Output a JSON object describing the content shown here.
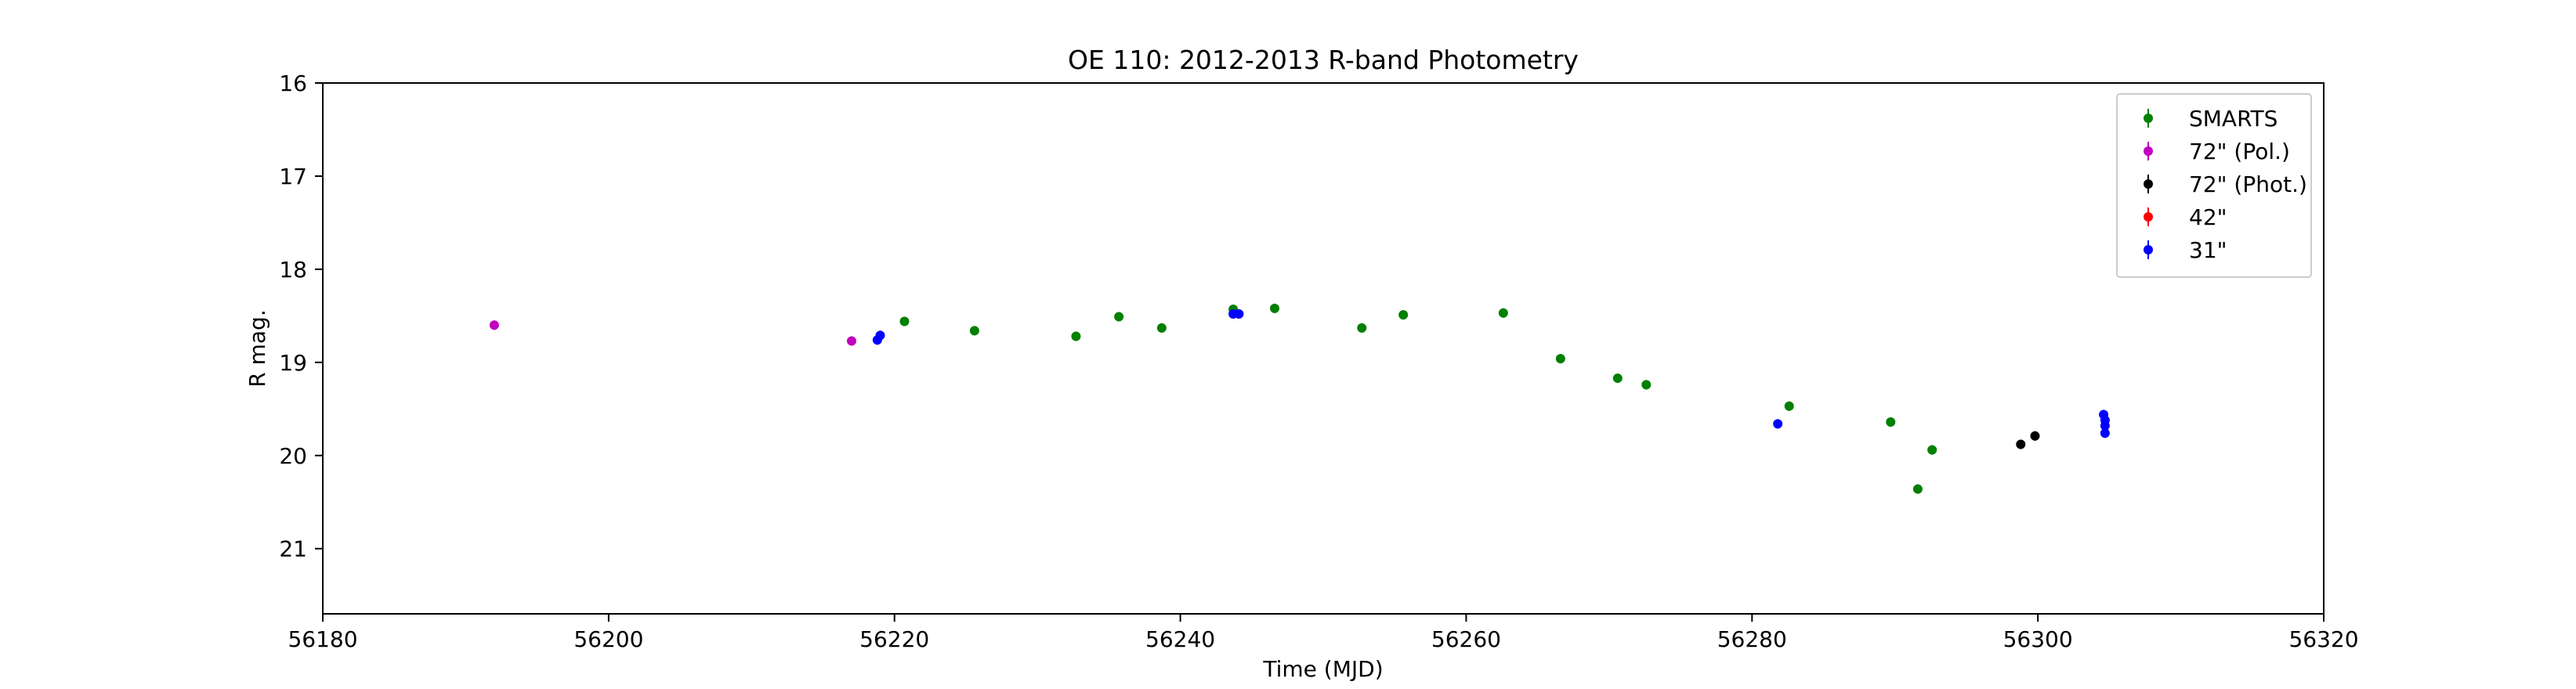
{
  "chart_data": {
    "type": "scatter",
    "title": "OE 110: 2012-2013 R-band Photometry",
    "xlabel": "Time (MJD)",
    "ylabel": "R mag.",
    "xlim": [
      56180,
      56320
    ],
    "ylim": [
      21.7,
      16
    ],
    "y_inverted": true,
    "xticks": [
      56180,
      56200,
      56220,
      56240,
      56260,
      56280,
      56300,
      56320
    ],
    "yticks": [
      16,
      17,
      18,
      19,
      20,
      21
    ],
    "grid": false,
    "legend_position": "top-right",
    "series": [
      {
        "name": "SMARTS",
        "color": "#008000",
        "marker": "circle-errorbar",
        "points": [
          [
            56220.7,
            18.56
          ],
          [
            56225.6,
            18.66
          ],
          [
            56232.7,
            18.72
          ],
          [
            56235.7,
            18.51
          ],
          [
            56238.7,
            18.63
          ],
          [
            56243.7,
            18.43
          ],
          [
            56246.6,
            18.42
          ],
          [
            56252.7,
            18.63
          ],
          [
            56255.6,
            18.49
          ],
          [
            56262.6,
            18.47
          ],
          [
            56266.6,
            18.96
          ],
          [
            56270.6,
            19.17
          ],
          [
            56272.6,
            19.24
          ],
          [
            56282.6,
            19.47
          ],
          [
            56289.7,
            19.64
          ],
          [
            56291.6,
            20.36
          ],
          [
            56292.6,
            19.94
          ]
        ]
      },
      {
        "name": "72\" (Pol.)",
        "color": "#bf00bf",
        "marker": "circle-errorbar",
        "points": [
          [
            56192.0,
            18.6
          ],
          [
            56217.0,
            18.77
          ]
        ]
      },
      {
        "name": "72\" (Phot.)",
        "color": "#000000",
        "marker": "circle-errorbar",
        "points": [
          [
            56298.8,
            19.88
          ],
          [
            56299.8,
            19.79
          ]
        ]
      },
      {
        "name": "42\"",
        "color": "#ff0000",
        "marker": "circle-errorbar",
        "points": []
      },
      {
        "name": "31\"",
        "color": "#0000ff",
        "marker": "circle-errorbar",
        "points": [
          [
            56218.8,
            18.76
          ],
          [
            56219.0,
            18.71
          ],
          [
            56243.7,
            18.48
          ],
          [
            56244.1,
            18.48
          ],
          [
            56281.8,
            19.66
          ],
          [
            56304.6,
            19.56
          ],
          [
            56304.7,
            19.62
          ],
          [
            56304.7,
            19.68
          ],
          [
            56304.7,
            19.76
          ]
        ]
      }
    ]
  }
}
